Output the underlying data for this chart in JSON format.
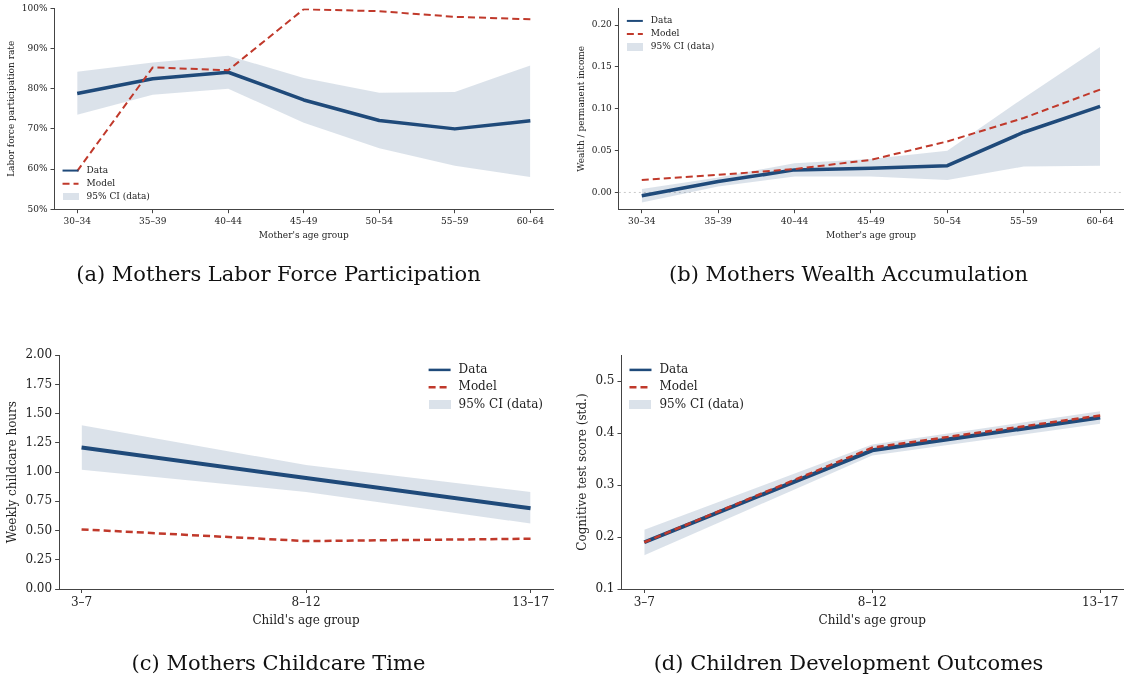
{
  "chart_data": [
    {
      "type": "line",
      "title": "(a) Mothers Labor Force Participation",
      "xlabel": "Mother's age group",
      "ylabel": "Labor force participation rate",
      "categories": [
        "30–34",
        "35–39",
        "40–44",
        "45–49",
        "50–54",
        "55–59",
        "60–64"
      ],
      "series": [
        {
          "name": "Data",
          "color": "#1f4a7a",
          "line_style": "solid",
          "values": [
            78.8,
            82.5,
            84.1,
            77.2,
            72.1,
            70.0,
            72.0
          ],
          "lower": [
            73.5,
            78.5,
            80.0,
            71.5,
            65.2,
            60.8,
            58.0
          ],
          "upper": [
            84.2,
            86.5,
            88.2,
            82.7,
            79.0,
            79.2,
            85.8
          ]
        },
        {
          "name": "Model",
          "color": "#c0392b",
          "line_style": "dashed",
          "values": [
            59.5,
            85.3,
            84.6,
            99.8,
            99.3,
            97.9,
            97.3
          ]
        }
      ],
      "annotations": [
        "95% CI (data)"
      ],
      "ylim": [
        50,
        100
      ],
      "yticks": [
        {
          "value": 50,
          "label": "50%"
        },
        {
          "value": 60,
          "label": "60%"
        },
        {
          "value": 70,
          "label": "70%"
        },
        {
          "value": 80,
          "label": "80%"
        },
        {
          "value": 90,
          "label": "90%"
        },
        {
          "value": 100,
          "label": "100%"
        }
      ],
      "grid": false,
      "legend": "bottom left",
      "marker": "none"
    },
    {
      "type": "line",
      "title": "(b) Mothers Wealth Accumulation",
      "xlabel": "Mother's age group",
      "ylabel": "Wealth / permanent income",
      "categories": [
        "30–34",
        "35–39",
        "40–44",
        "45–49",
        "50–54",
        "55–59",
        "60–64"
      ],
      "series": [
        {
          "name": "Data",
          "color": "#1f4a7a",
          "line_style": "solid",
          "values": [
            -0.004,
            0.013,
            0.027,
            0.029,
            0.032,
            0.072,
            0.103
          ],
          "lower": [
            -0.012,
            0.007,
            0.019,
            0.019,
            0.015,
            0.031,
            0.032
          ],
          "upper": [
            0.004,
            0.018,
            0.035,
            0.04,
            0.05,
            0.113,
            0.174
          ]
        },
        {
          "name": "Model",
          "color": "#c0392b",
          "line_style": "dashed",
          "values": [
            0.015,
            0.021,
            0.028,
            0.039,
            0.061,
            0.089,
            0.123
          ]
        }
      ],
      "annotations": [
        "95% CI (data)"
      ],
      "ylim": [
        -0.02,
        0.22
      ],
      "yticks": [
        {
          "value": 0,
          "label": "0.00"
        },
        {
          "value": 0.05,
          "label": "0.05"
        },
        {
          "value": 0.1,
          "label": "0.10"
        },
        {
          "value": 0.15,
          "label": "0.15"
        },
        {
          "value": 0.2,
          "label": "0.20"
        }
      ],
      "ref_lines": [
        {
          "axis": "y",
          "value": 0,
          "color": "#bbbbbb",
          "line_style": "dotted"
        }
      ],
      "grid": false,
      "legend": "top left",
      "marker": "none"
    },
    {
      "type": "line",
      "title": "(c) Mothers Childcare Time",
      "xlabel": "Child's age group",
      "ylabel": "Weekly childcare hours",
      "categories": [
        "3–7",
        "8–12",
        "13–17"
      ],
      "series": [
        {
          "name": "Data",
          "color": "#1f4a7a",
          "line_style": "solid",
          "values": [
            1.21,
            0.95,
            0.69
          ],
          "lower": [
            1.02,
            0.83,
            0.56
          ],
          "upper": [
            1.4,
            1.06,
            0.83
          ]
        },
        {
          "name": "Model",
          "color": "#c0392b",
          "line_style": "dashed",
          "values": [
            0.51,
            0.41,
            0.43
          ]
        }
      ],
      "annotations": [
        "95% CI (data)"
      ],
      "ylim": [
        0,
        2
      ],
      "yticks": [
        {
          "value": 0,
          "label": "0.00"
        },
        {
          "value": 0.25,
          "label": "0.25"
        },
        {
          "value": 0.5,
          "label": "0.50"
        },
        {
          "value": 0.75,
          "label": "0.75"
        },
        {
          "value": 1,
          "label": "1.00"
        },
        {
          "value": 1.25,
          "label": "1.25"
        },
        {
          "value": 1.5,
          "label": "1.50"
        },
        {
          "value": 1.75,
          "label": "1.75"
        },
        {
          "value": 2,
          "label": "2.00"
        }
      ],
      "grid": false,
      "legend": "top right",
      "marker": "none"
    },
    {
      "type": "line",
      "title": "(d) Children Development Outcomes",
      "xlabel": "Child's age group",
      "ylabel": "Cognitive test score (std.)",
      "categories": [
        "3–7",
        "8–12",
        "13–17"
      ],
      "series": [
        {
          "name": "Data",
          "color": "#1f4a7a",
          "line_style": "solid",
          "values": [
            0.19,
            0.367,
            0.43
          ],
          "lower": [
            0.165,
            0.357,
            0.418
          ],
          "upper": [
            0.214,
            0.378,
            0.442
          ]
        },
        {
          "name": "Model",
          "color": "#c0392b",
          "line_style": "dashed",
          "values": [
            0.19,
            0.372,
            0.434
          ]
        }
      ],
      "annotations": [
        "95% CI (data)"
      ],
      "ylim": [
        0.1,
        0.55
      ],
      "yticks": [
        0.1,
        0.2,
        0.3,
        0.4,
        0.5
      ],
      "grid": false,
      "legend": "top left",
      "marker": "none"
    }
  ]
}
